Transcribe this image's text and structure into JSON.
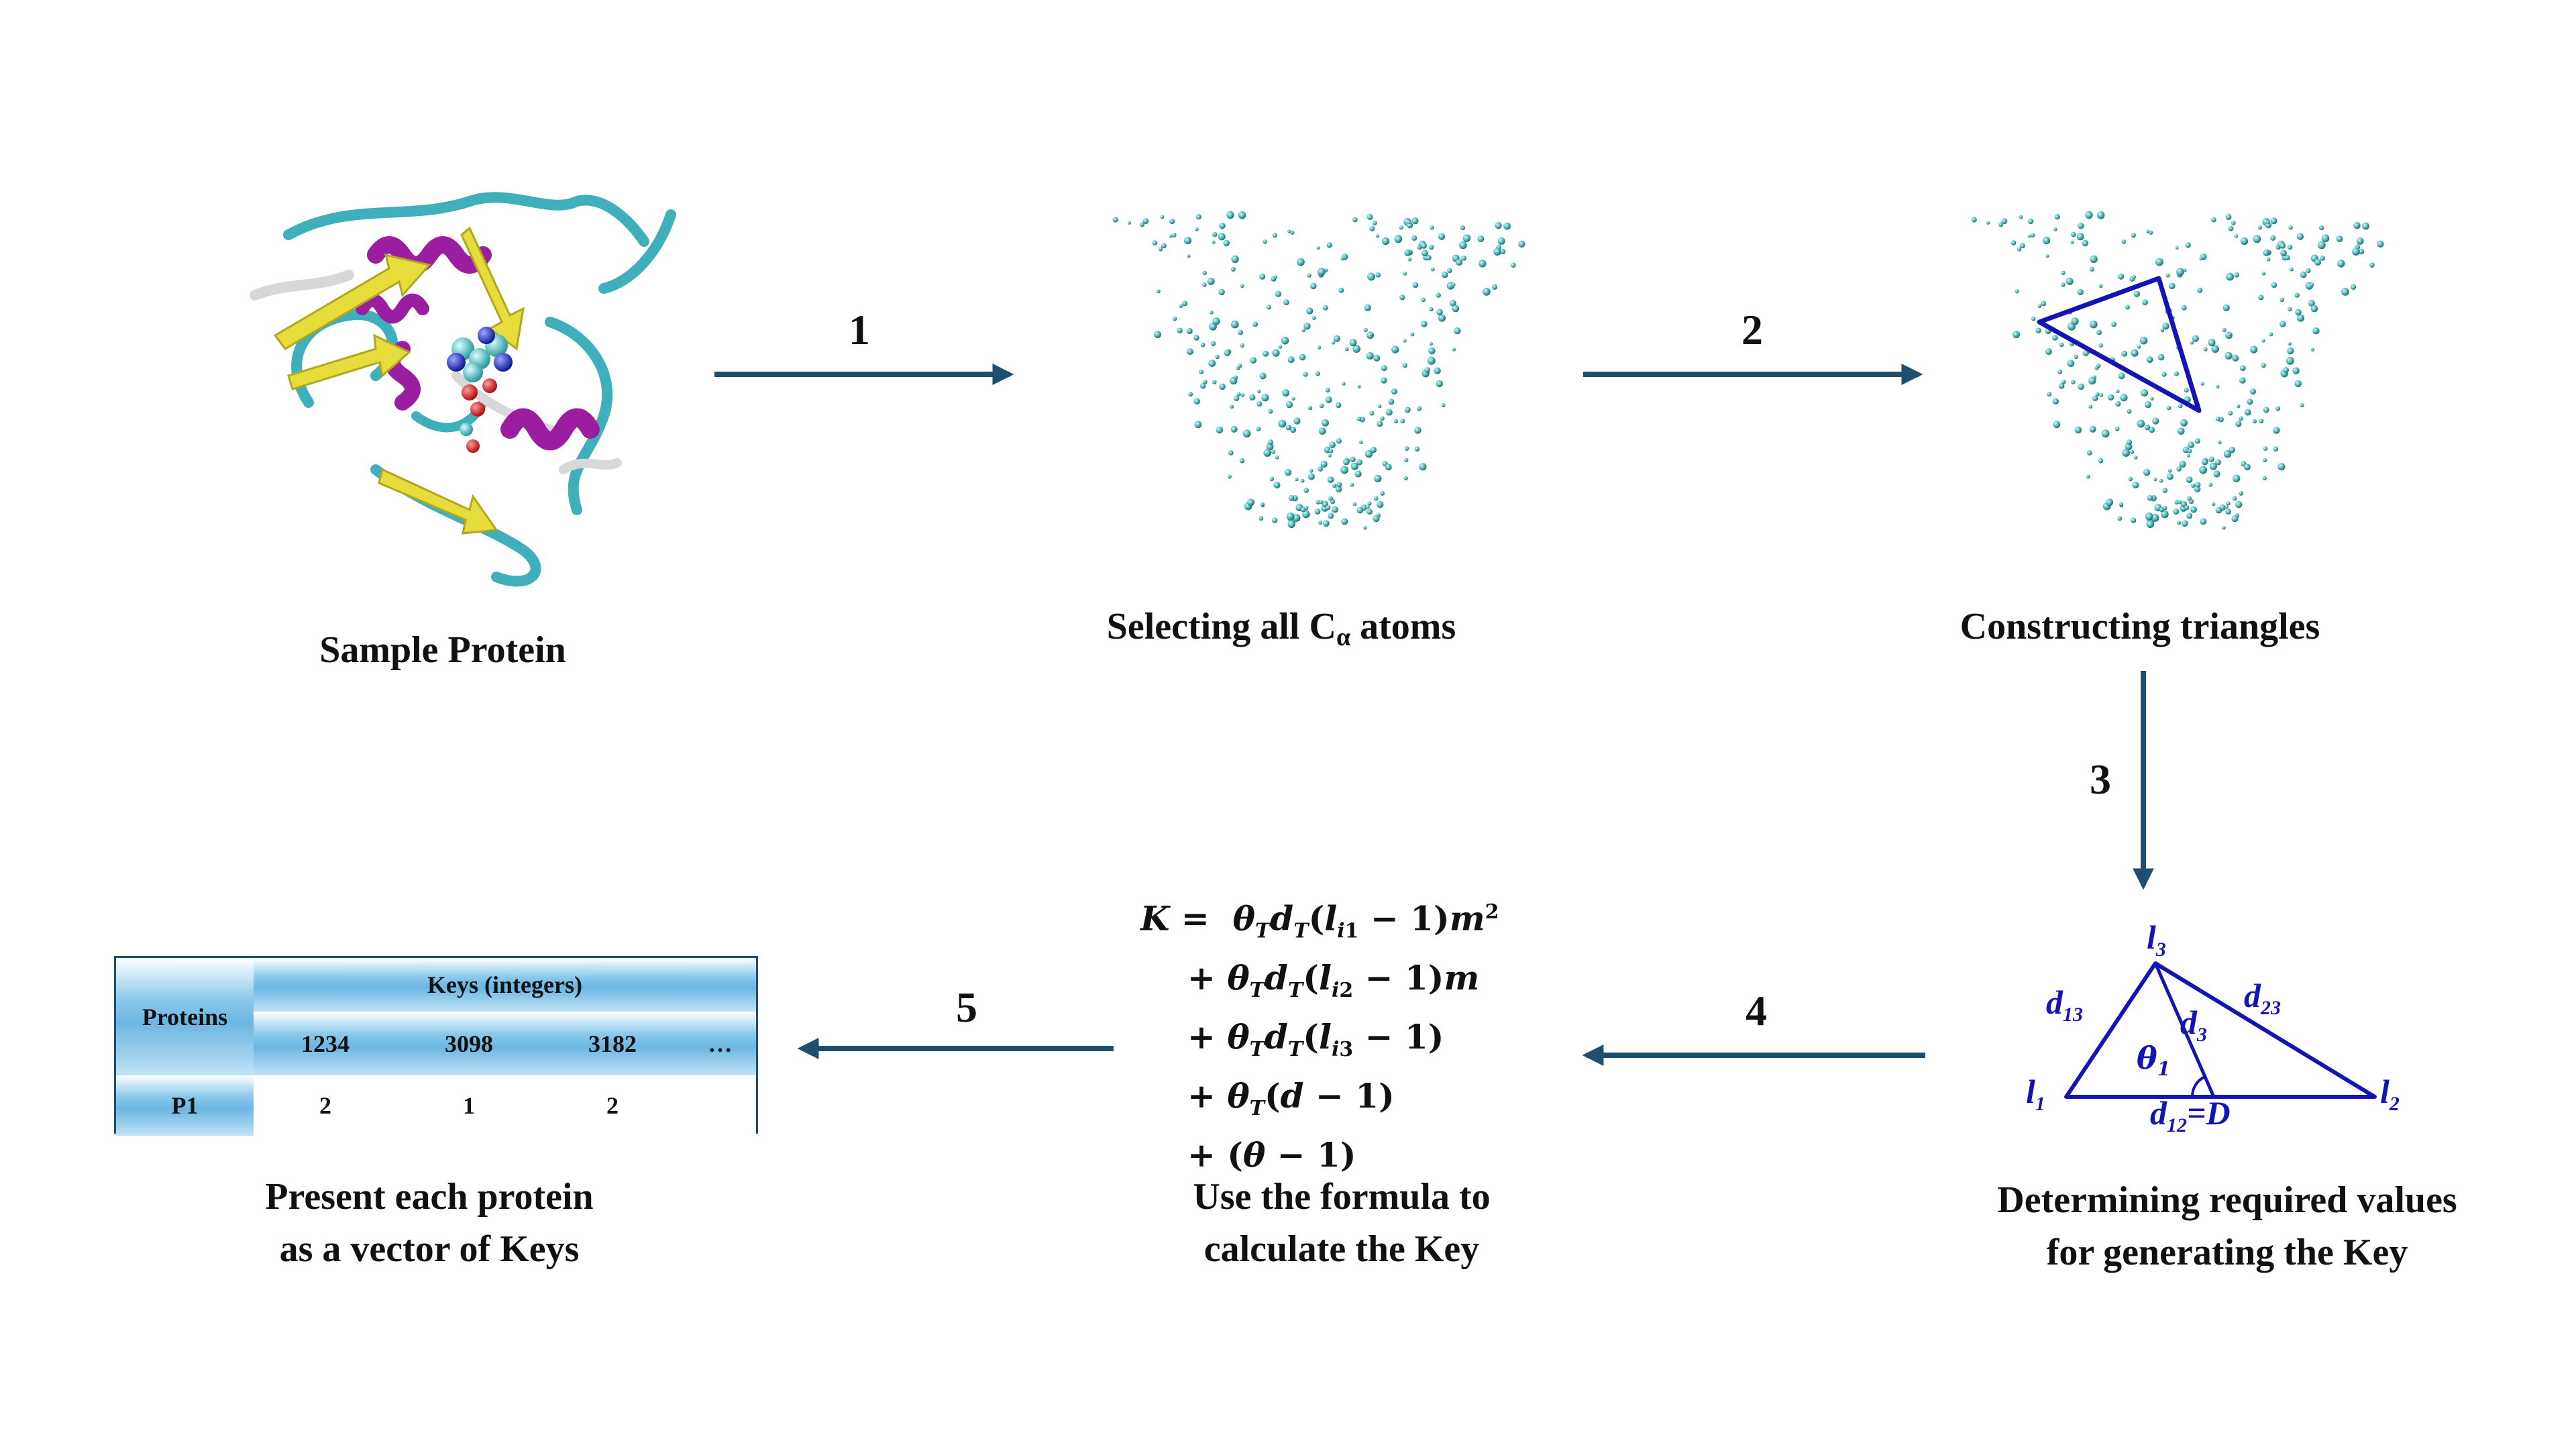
{
  "steps": [
    "1",
    "2",
    "3",
    "4",
    "5"
  ],
  "captions": {
    "sample_protein": "Sample Protein",
    "selecting_prefix": "Selecting all C",
    "selecting_sub": "α",
    "selecting_suffix": " atoms",
    "constructing": "Constructing triangles",
    "determining_l1": "Determining required values",
    "determining_l2": "for generating the Key",
    "formula_l1": "Use the formula to",
    "formula_l2": "calculate the Key",
    "present_l1": "Present each protein",
    "present_l2": "as a vector of Keys"
  },
  "triangle_labels": {
    "l1": "l",
    "l1_sub": "1",
    "l2": "l",
    "l2_sub": "2",
    "l3": "l",
    "l3_sub": "3",
    "d13": "d",
    "d13_sub": "13",
    "d23": "d",
    "d23_sub": "23",
    "d3": "d",
    "d3_sub": "3",
    "theta": "θ",
    "theta_sub": "1",
    "d12": "d",
    "d12_sub": "12",
    "d12_suffix": "=D"
  },
  "formula": [
    "K =  θ_T d_T (l_i1 − 1)m²",
    "+ θ_T d_T (l_i2 − 1)m",
    "+ θ_T d_T (l_i3 − 1)",
    "+ θ_T (d − 1)",
    "+ (θ − 1)"
  ],
  "table": {
    "row_header": "Proteins",
    "group_header": "Keys (integers)",
    "keys": [
      "1234",
      "3098",
      "3182",
      "…"
    ],
    "row_label": "P1",
    "values": [
      "2",
      "1",
      "2",
      ""
    ]
  },
  "colors": {
    "arrow": "#1f4f6e",
    "triangle": "#1414b4",
    "atom": "#4fb6b8",
    "helix": "#9c1ea0",
    "sheet": "#e6dc3c",
    "coil": "#3fb0bb",
    "table_border": "#1f4f6e"
  }
}
